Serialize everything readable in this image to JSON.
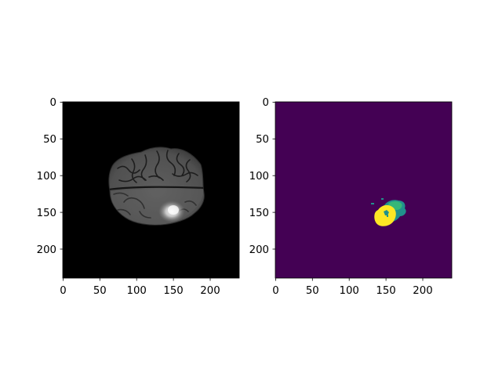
{
  "panels": [
    {
      "id": "mri-slice",
      "colormap": "gray",
      "x_ticks": [
        "0",
        "50",
        "100",
        "150",
        "200"
      ],
      "y_ticks": [
        "0",
        "50",
        "100",
        "150",
        "200"
      ],
      "x_range": [
        0,
        239
      ],
      "y_range": [
        0,
        239
      ]
    },
    {
      "id": "segmentation-mask",
      "colormap": "viridis",
      "x_ticks": [
        "0",
        "50",
        "100",
        "150",
        "200"
      ],
      "y_ticks": [
        "0",
        "50",
        "100",
        "150",
        "200"
      ],
      "x_range": [
        0,
        239
      ],
      "y_range": [
        0,
        239
      ]
    }
  ],
  "colors": {
    "mask_background": "#440154",
    "mask_label_teal": "#21918c",
    "mask_label_green": "#35b779",
    "mask_label_yellow": "#fde725",
    "image_background": "#000000"
  }
}
